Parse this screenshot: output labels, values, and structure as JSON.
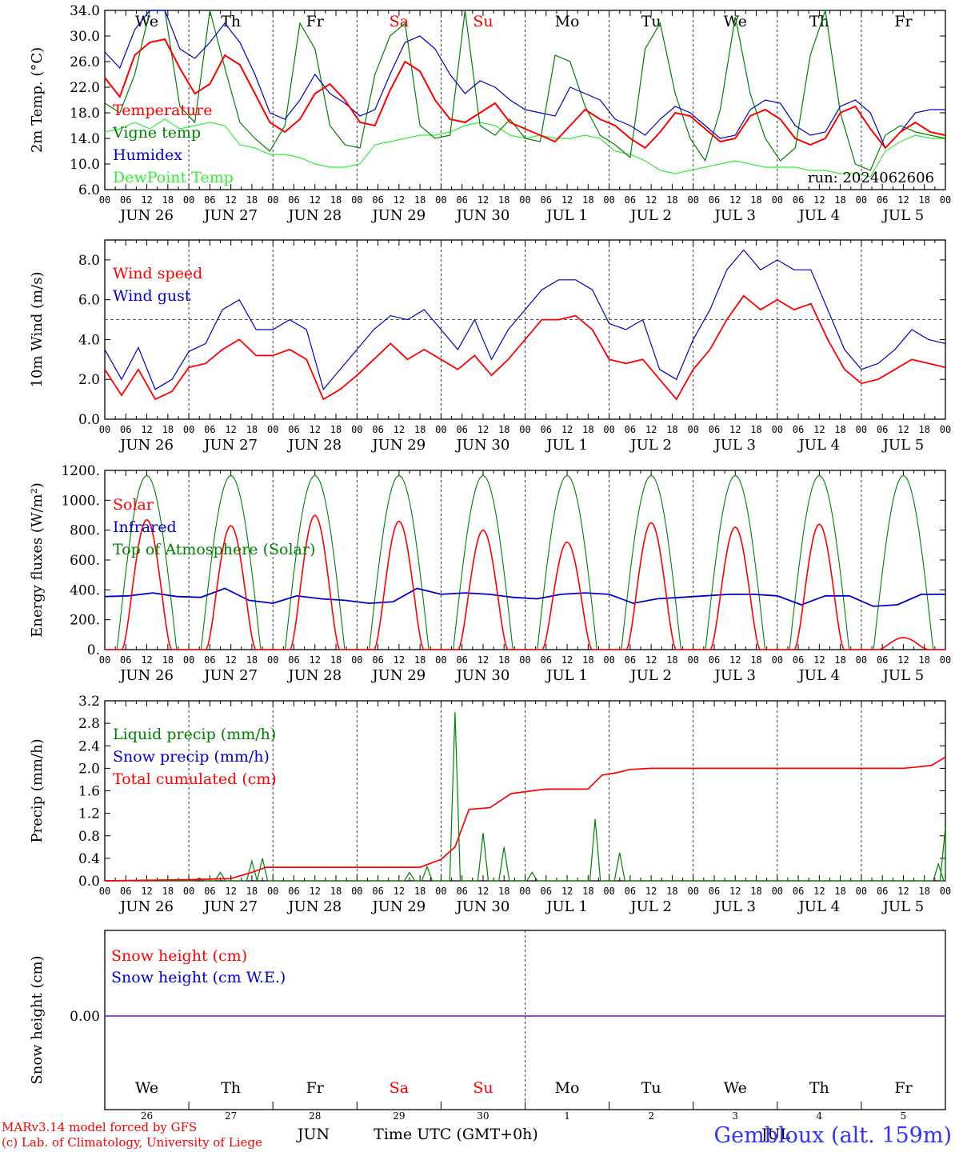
{
  "run_label": "run: 2024062606",
  "footer": {
    "model_line": "MARv3.14 model forced by GFS",
    "copyright_line": "(c) Lab. of Climatology, University of Liege",
    "station": "Gembloux (alt. 159m)",
    "time_axis_label": "Time UTC (GMT+0h)",
    "month_jun": "JUN",
    "month_jul": "JUL"
  },
  "day_labels": [
    "JUN 26",
    "JUN 27",
    "JUN 28",
    "JUN 29",
    "JUN 30",
    "JUL  1",
    "JUL  2",
    "JUL  3",
    "JUL  4",
    "JUL  5"
  ],
  "weekdays": [
    "We",
    "Th",
    "Fr",
    "Sa",
    "Su",
    "Mo",
    "Tu",
    "We",
    "Th",
    "Fr"
  ],
  "weekday_colors": [
    "#000000",
    "#000000",
    "#000000",
    "#ff0000",
    "#ff0000",
    "#000000",
    "#000000",
    "#000000",
    "#000000",
    "#000000"
  ],
  "day_numbers": [
    "26",
    "27",
    "28",
    "29",
    "30",
    "1",
    "2",
    "3",
    "4",
    "5"
  ],
  "hour_ticks": [
    "00",
    "06",
    "12",
    "18"
  ],
  "chart_data": [
    {
      "type": "line",
      "ylabel": "2m Temp. (°C)",
      "ylim": [
        6,
        34
      ],
      "yticks": [
        "6.0",
        "10.0",
        "14.0",
        "18.0",
        "22.0",
        "26.0",
        "30.0",
        "34.0"
      ],
      "x": "hours since Jun 26 00 UTC, 6-hourly, 0-240",
      "series": [
        {
          "name": "Temperature",
          "color": "#ff0000",
          "values": [
            23.5,
            20.5,
            27,
            29,
            29.5,
            25,
            21,
            22.5,
            27,
            25.5,
            21,
            16.5,
            15,
            17,
            21,
            22.5,
            20,
            16.5,
            16,
            21.5,
            26,
            24.5,
            20,
            17,
            16.5,
            18,
            19.5,
            16.5,
            15.5,
            14.5,
            13.5,
            16,
            18.5,
            17,
            16,
            14,
            12.5,
            15,
            18,
            17.5,
            15.5,
            13.5,
            14,
            17.5,
            18.5,
            17,
            14,
            13,
            14,
            18,
            19,
            15.5,
            12.5,
            15,
            16.5,
            15,
            14.5
          ]
        },
        {
          "name": "Vigne temp",
          "color": "#008000",
          "values": [
            19.5,
            18,
            24,
            34,
            34,
            19,
            16.5,
            34,
            25,
            16.5,
            14,
            12,
            16,
            32,
            28,
            16,
            13,
            12.5,
            24,
            30,
            32,
            16,
            14,
            14.5,
            34,
            16,
            14.5,
            17,
            14,
            13.5,
            27,
            26,
            19,
            14.5,
            13,
            11,
            28,
            32,
            21,
            14,
            10.5,
            18.5,
            33,
            21,
            14,
            10.5,
            12.5,
            27,
            34,
            18,
            10,
            9,
            14.5,
            16,
            15,
            14.5,
            14
          ]
        },
        {
          "name": "Humidex",
          "color": "#0000cc",
          "values": [
            27.5,
            25,
            31,
            34,
            34,
            28,
            26.5,
            29,
            32,
            29,
            24,
            18,
            17,
            20,
            24,
            21,
            19.5,
            17.5,
            18.5,
            24,
            29,
            30,
            28,
            24,
            21,
            23,
            22,
            20,
            18.5,
            18,
            17.5,
            22,
            21,
            20,
            17,
            16,
            14.5,
            17,
            19,
            18,
            16,
            14,
            14.5,
            18.5,
            20,
            19.5,
            16,
            14.5,
            15,
            19,
            20,
            18,
            12.5,
            15,
            18,
            18.5,
            18.5
          ]
        },
        {
          "name": "DewPoint Temp",
          "color": "#33ee33",
          "values": [
            15,
            15.5,
            16.5,
            15.5,
            17,
            15.5,
            16,
            16.5,
            16,
            13,
            12.5,
            11.5,
            11.5,
            11,
            10,
            9.5,
            9.5,
            10,
            13,
            13.5,
            14,
            14.5,
            14.5,
            15,
            16,
            16.5,
            16,
            14.5,
            14,
            14.5,
            14,
            14,
            14.5,
            14,
            12,
            11.5,
            10.5,
            9,
            8.5,
            9,
            9.5,
            10,
            10.5,
            10,
            9.5,
            9.5,
            9.5,
            9,
            9,
            8.5,
            8.5,
            8,
            12,
            13.5,
            14.5,
            14,
            14
          ]
        }
      ]
    },
    {
      "type": "line",
      "ylabel": "10m Wind (m/s)",
      "ylim": [
        0,
        9
      ],
      "yticks": [
        "0.0",
        "2.0",
        "4.0",
        "6.0",
        "8.0"
      ],
      "reference_line": 5,
      "series": [
        {
          "name": "Wind speed",
          "color": "#ff0000",
          "values": [
            2.5,
            1.2,
            2.5,
            1,
            1.4,
            2.6,
            2.8,
            3.5,
            4,
            3.2,
            3.2,
            3.5,
            3,
            1,
            1.5,
            2.2,
            3,
            3.8,
            3,
            3.5,
            3,
            2.5,
            3.2,
            2.2,
            3,
            4,
            5,
            5,
            5.2,
            4.5,
            3,
            2.8,
            3,
            2,
            1,
            2.5,
            3.5,
            5,
            6.2,
            5.5,
            6,
            5.5,
            5.8,
            4,
            2.5,
            1.8,
            2,
            2.5,
            3,
            2.8,
            2.6
          ]
        },
        {
          "name": "Wind gust",
          "color": "#0000cc",
          "values": [
            3.5,
            2,
            3.6,
            1.5,
            2,
            3.4,
            3.8,
            5.5,
            6,
            4.5,
            4.5,
            5,
            4.5,
            1.5,
            2.5,
            3.5,
            4.5,
            5.2,
            5,
            5.5,
            4.5,
            3.5,
            5,
            3,
            4.5,
            5.5,
            6.5,
            7,
            7,
            6.5,
            4.8,
            4.5,
            5,
            2.5,
            2,
            4,
            5.5,
            7.5,
            8.5,
            7.5,
            8,
            7.5,
            7.5,
            5.5,
            3.5,
            2.5,
            2.8,
            3.5,
            4.5,
            4,
            3.8
          ]
        }
      ]
    },
    {
      "type": "line",
      "ylabel": "Energy fluxes (W/m²)",
      "ylim": [
        0,
        1200
      ],
      "yticks": [
        "0.",
        "200.",
        "400.",
        "600.",
        "800.",
        "1000.",
        "1200."
      ],
      "series": [
        {
          "name": "Solar",
          "color": "#ff0000",
          "peaks": [
            870,
            830,
            900,
            860,
            800,
            720,
            850,
            820,
            840,
            80
          ]
        },
        {
          "name": "Infrared",
          "color": "#0000cc",
          "values": [
            355,
            360,
            380,
            355,
            350,
            410,
            330,
            310,
            360,
            340,
            330,
            310,
            320,
            410,
            370,
            380,
            370,
            350,
            340,
            370,
            380,
            370,
            310,
            340,
            350,
            360,
            370,
            370,
            360,
            300,
            360,
            360,
            290,
            300,
            370,
            370
          ]
        },
        {
          "name": "Top of Atmosphere (Solar)",
          "color": "#008000",
          "peak": 1165
        }
      ]
    },
    {
      "type": "line",
      "ylabel": "Precip (mm/h)",
      "ylim": [
        0,
        3.2
      ],
      "yticks": [
        "0.0",
        "0.4",
        "0.8",
        "1.2",
        "1.6",
        "2.0",
        "2.4",
        "2.8",
        "3.2"
      ],
      "series": [
        {
          "name": "Liquid precip (mm/h)",
          "color": "#008000",
          "events": [
            [
              27,
              0.05
            ],
            [
              33,
              0.15
            ],
            [
              42,
              0.35
            ],
            [
              45,
              0.4
            ],
            [
              87,
              0.15
            ],
            [
              92,
              0.25
            ],
            [
              100,
              3.0
            ],
            [
              108,
              0.85
            ],
            [
              114,
              0.6
            ],
            [
              122,
              0.15
            ],
            [
              140,
              1.1
            ],
            [
              147,
              0.5
            ],
            [
              238,
              0.3
            ],
            [
              240,
              0.95
            ]
          ]
        },
        {
          "name": "Snow precip (mm/h)",
          "color": "#0000cc",
          "values": [
            0
          ]
        },
        {
          "name": "Total cumulated (cm)",
          "color": "#ff0000",
          "values": [
            [
              0,
              0
            ],
            [
              24,
              0.02
            ],
            [
              36,
              0.04
            ],
            [
              42,
              0.15
            ],
            [
              46,
              0.24
            ],
            [
              90,
              0.24
            ],
            [
              96,
              0.38
            ],
            [
              100,
              0.6
            ],
            [
              104,
              1.27
            ],
            [
              110,
              1.3
            ],
            [
              116,
              1.55
            ],
            [
              122,
              1.6
            ],
            [
              126,
              1.63
            ],
            [
              138,
              1.63
            ],
            [
              142,
              1.88
            ],
            [
              146,
              1.92
            ],
            [
              150,
              1.98
            ],
            [
              156,
              2.0
            ],
            [
              228,
              2.0
            ],
            [
              236,
              2.05
            ],
            [
              240,
              2.2
            ]
          ]
        }
      ]
    },
    {
      "type": "line",
      "ylabel": "Snow height (cm)",
      "yticks": [
        "0.00"
      ],
      "series": [
        {
          "name": "Snow height (cm)",
          "color": "#ff0000",
          "values": [
            0,
            0
          ]
        },
        {
          "name": "Snow height (cm W.E.)",
          "color": "#0000cc",
          "values": [
            0,
            0
          ]
        }
      ]
    }
  ]
}
